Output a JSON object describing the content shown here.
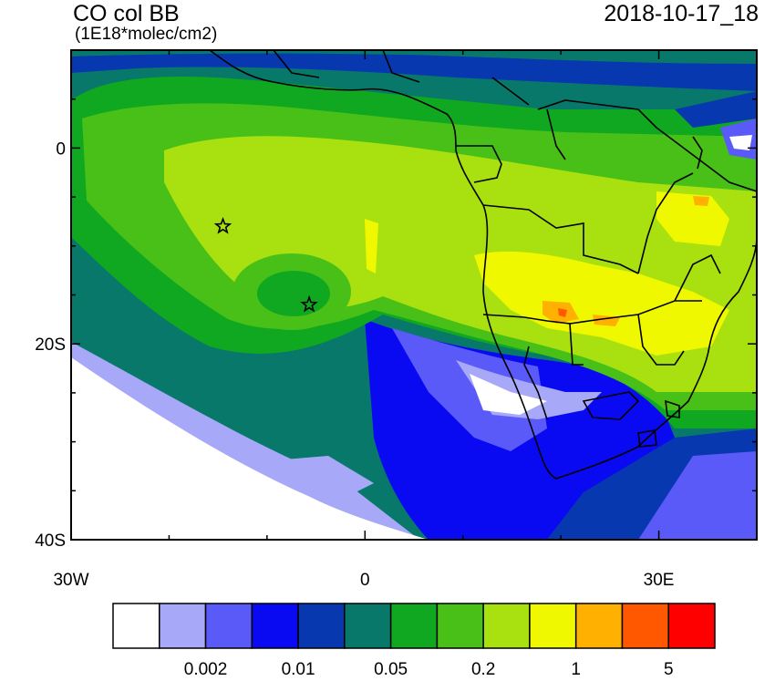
{
  "header": {
    "title": "CO col BB",
    "units": "(1E18*molec/cm2)",
    "timestamp": "2018-10-17_18"
  },
  "axes": {
    "lat_ticks": [
      {
        "value": 0,
        "label": "0"
      },
      {
        "value": -20,
        "label": "20S"
      },
      {
        "value": -40,
        "label": "40S"
      }
    ],
    "lon_ticks": [
      {
        "value": -30,
        "label": "30W"
      },
      {
        "value": 0,
        "label": "0"
      },
      {
        "value": 30,
        "label": "30E"
      }
    ],
    "lon_range": [
      -30,
      40
    ],
    "lat_range": [
      -40,
      10
    ]
  },
  "colorbar": {
    "colors": [
      "#ffffff",
      "#a8a8f8",
      "#5a5af8",
      "#0a0af2",
      "#0838b0",
      "#08786a",
      "#10a820",
      "#48c018",
      "#a8e010",
      "#f0f800",
      "#ffb000",
      "#ff5800",
      "#ff0000"
    ],
    "labels": [
      "0.002",
      "0.01",
      "0.05",
      "0.2",
      "1",
      "5"
    ],
    "label_after_box": [
      1,
      3,
      5,
      7,
      9,
      11
    ]
  },
  "markers": [
    {
      "type": "star",
      "lon": -14.5,
      "lat": -8
    },
    {
      "type": "star",
      "lon": -5.7,
      "lat": -16
    }
  ]
}
